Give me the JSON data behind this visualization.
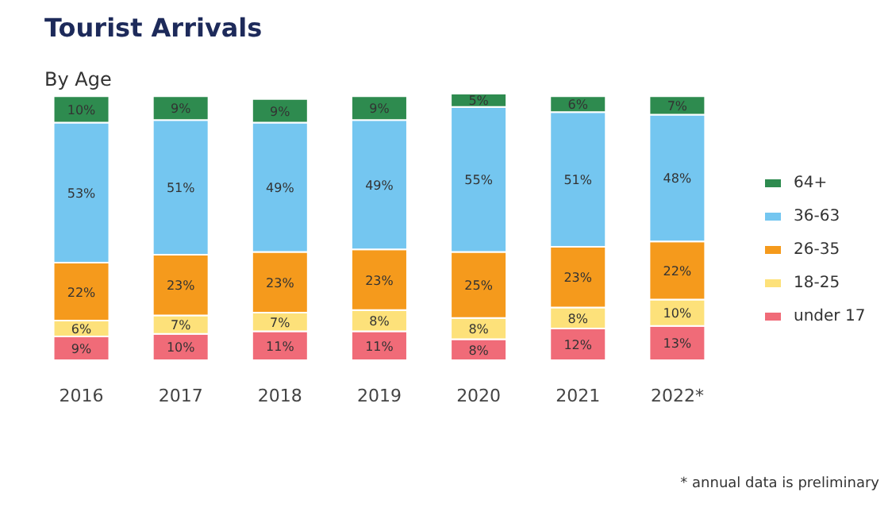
{
  "chart_data": {
    "type": "bar",
    "title": "Tourist Arrivals",
    "subtitle": "By Age",
    "stacked": true,
    "legend": "right",
    "grid": false,
    "data_labels": true,
    "categories": [
      "2016",
      "2017",
      "2018",
      "2019",
      "2020",
      "2021",
      "2022*"
    ],
    "series": [
      {
        "name": "under 17",
        "color": "#f06b78",
        "values": [
          9,
          10,
          11,
          11,
          8,
          12,
          13
        ],
        "value_labels": [
          "9%",
          "10%",
          "11%",
          "11%",
          "8%",
          "12%",
          "13%"
        ]
      },
      {
        "name": "18-25",
        "color": "#fde17a",
        "values": [
          6,
          7,
          7,
          8,
          8,
          8,
          10
        ],
        "value_labels": [
          "6%",
          "7%",
          "7%",
          "8%",
          "8%",
          "8%",
          "10%"
        ]
      },
      {
        "name": "26-35",
        "color": "#f59a1c",
        "values": [
          22,
          23,
          23,
          23,
          25,
          23,
          22
        ],
        "value_labels": [
          "22%",
          "23%",
          "23%",
          "23%",
          "25%",
          "23%",
          "22%"
        ]
      },
      {
        "name": "36-63",
        "color": "#74c6f0",
        "values": [
          53,
          51,
          49,
          49,
          55,
          51,
          48
        ],
        "value_labels": [
          "53%",
          "51%",
          "49%",
          "49%",
          "55%",
          "51%",
          "48%"
        ]
      },
      {
        "name": "64+",
        "color": "#2e8b4f",
        "values": [
          10,
          9,
          9,
          9,
          5,
          6,
          7
        ],
        "value_labels": [
          "10%",
          "9%",
          "9%",
          "9%",
          "5%",
          "6%",
          "7%"
        ]
      }
    ],
    "annotations": [
      "* annual data is preliminary"
    ]
  }
}
